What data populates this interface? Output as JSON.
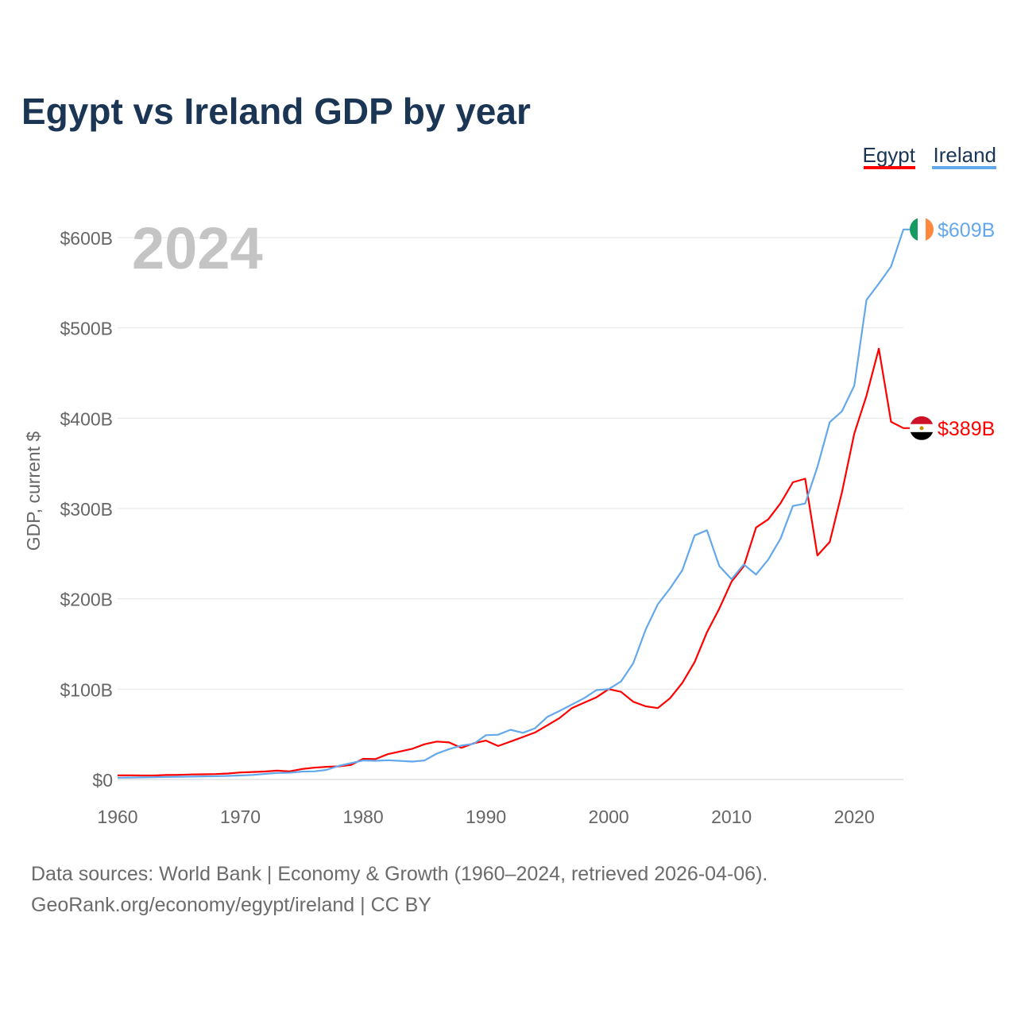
{
  "chart_data": {
    "type": "line",
    "title": "Egypt vs Ireland GDP by year",
    "current_year_label": "2024",
    "ylabel": "GDP, current $",
    "xlabel": "",
    "xlim": [
      1960,
      2024
    ],
    "ylim": [
      0,
      600
    ],
    "y_unit": "billions USD",
    "x_ticks": [
      1960,
      1970,
      1980,
      1990,
      2000,
      2010,
      2020
    ],
    "x_tick_labels": [
      "1960",
      "1970",
      "1980",
      "1990",
      "2000",
      "2010",
      "2020"
    ],
    "y_ticks": [
      0,
      100,
      200,
      300,
      400,
      500,
      600
    ],
    "y_tick_labels": [
      "$0",
      "$100B",
      "$200B",
      "$300B",
      "$400B",
      "$500B",
      "$600B"
    ],
    "grid": true,
    "legend_position": "top-right",
    "x": [
      1960,
      1961,
      1962,
      1963,
      1964,
      1965,
      1966,
      1967,
      1968,
      1969,
      1970,
      1971,
      1972,
      1973,
      1974,
      1975,
      1976,
      1977,
      1978,
      1979,
      1980,
      1981,
      1982,
      1983,
      1984,
      1985,
      1986,
      1987,
      1988,
      1989,
      1990,
      1991,
      1992,
      1993,
      1994,
      1995,
      1996,
      1997,
      1998,
      1999,
      2000,
      2001,
      2002,
      2003,
      2004,
      2005,
      2006,
      2007,
      2008,
      2009,
      2010,
      2011,
      2012,
      2013,
      2014,
      2015,
      2016,
      2017,
      2018,
      2019,
      2020,
      2021,
      2022,
      2023,
      2024
    ],
    "series": [
      {
        "name": "Egypt",
        "color": "#ff0000",
        "end_label": "$389B",
        "values": [
          4.5,
          4.6,
          4.4,
          4.4,
          4.9,
          5.1,
          5.5,
          5.7,
          6.0,
          6.6,
          7.7,
          8.3,
          8.8,
          9.8,
          9.0,
          11.5,
          13.0,
          14.0,
          14.5,
          16.0,
          22.9,
          22.5,
          28.0,
          31.0,
          34.0,
          39.0,
          42.0,
          41.0,
          35.0,
          40.0,
          43.0,
          37.0,
          42.0,
          47.0,
          52.0,
          60.0,
          68.0,
          79.0,
          85.0,
          91.0,
          100.0,
          97.0,
          86.0,
          81.0,
          79.0,
          90.0,
          107.0,
          130.0,
          163.0,
          189.0,
          219.0,
          236.0,
          279.0,
          288.0,
          306.0,
          329.0,
          333.0,
          248.0,
          263.0,
          318.0,
          383.0,
          425.0,
          477.0,
          396.0,
          389.0
        ]
      },
      {
        "name": "Ireland",
        "color": "#64a8ec",
        "end_label": "$609B",
        "values": [
          1.9,
          2.1,
          2.3,
          2.5,
          2.8,
          3.0,
          3.2,
          3.4,
          3.6,
          4.0,
          4.4,
          5.0,
          6.2,
          7.2,
          7.5,
          8.7,
          9.0,
          10.6,
          15.0,
          18.0,
          21.0,
          20.7,
          21.3,
          20.6,
          19.8,
          21.0,
          28.6,
          33.6,
          37.6,
          39.5,
          49.0,
          49.5,
          55.0,
          51.6,
          56.7,
          69.3,
          75.9,
          83.0,
          90.0,
          99.0,
          100.0,
          108.5,
          128.6,
          165.7,
          194.0,
          211.6,
          231.7,
          270.3,
          275.9,
          236.5,
          221.7,
          238.1,
          226.9,
          243.5,
          266.8,
          302.8,
          305.5,
          346.0,
          395.6,
          407.7,
          436.0,
          531.0,
          549.0,
          568.0,
          609.0
        ]
      }
    ]
  },
  "footer": {
    "line1": "Data sources: World Bank | Economy & Growth (1960–2024, retrieved 2026-04-06).",
    "line2": "GeoRank.org/economy/egypt/ireland | CC BY"
  }
}
